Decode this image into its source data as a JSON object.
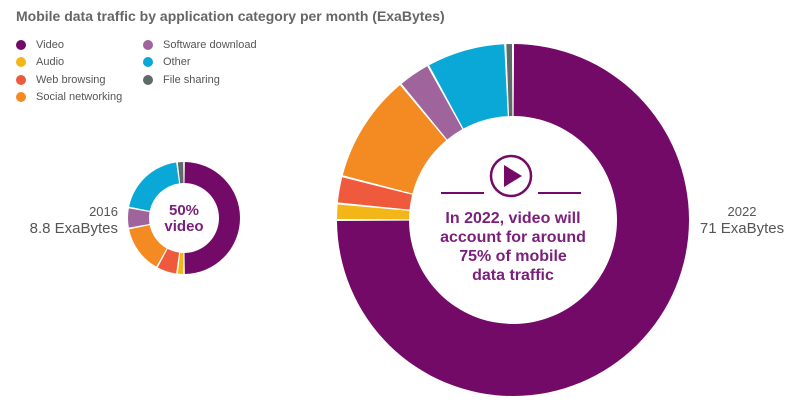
{
  "colors": {
    "video": "#730a67",
    "audio": "#f2b619",
    "web_browsing": "#ef5a3c",
    "social_networking": "#f38a22",
    "software_download": "#9e649b",
    "other": "#0aa8d6",
    "file_sharing": "#5f6a6a",
    "icon": "#730a67"
  },
  "chart_data": {
    "type": "pie",
    "title": "Mobile data traffic by application category per month (ExaBytes)",
    "legend": [
      "Video",
      "Audio",
      "Web browsing",
      "Social networking",
      "Software download",
      "Other",
      "File sharing"
    ],
    "legend_placement": "top-left",
    "charts": [
      {
        "year": "2016",
        "total": "8.8 ExaBytes",
        "center_text": [
          "50%",
          "video"
        ],
        "slices": [
          {
            "name": "Video",
            "value": 50
          },
          {
            "name": "Audio",
            "value": 2
          },
          {
            "name": "Web browsing",
            "value": 6
          },
          {
            "name": "Social networking",
            "value": 14
          },
          {
            "name": "Software download",
            "value": 6
          },
          {
            "name": "Other",
            "value": 20
          },
          {
            "name": "File sharing",
            "value": 2
          }
        ]
      },
      {
        "year": "2022",
        "total": "71 ExaBytes",
        "center_text": [
          "In 2022, video will",
          "account for around",
          "75% of mobile",
          "data traffic"
        ],
        "slices": [
          {
            "name": "Video",
            "value": 75
          },
          {
            "name": "Audio",
            "value": 1.5
          },
          {
            "name": "Web browsing",
            "value": 2.5
          },
          {
            "name": "Social networking",
            "value": 10
          },
          {
            "name": "Software download",
            "value": 3
          },
          {
            "name": "Other",
            "value": 7.3
          },
          {
            "name": "File sharing",
            "value": 0.7
          }
        ]
      }
    ]
  }
}
